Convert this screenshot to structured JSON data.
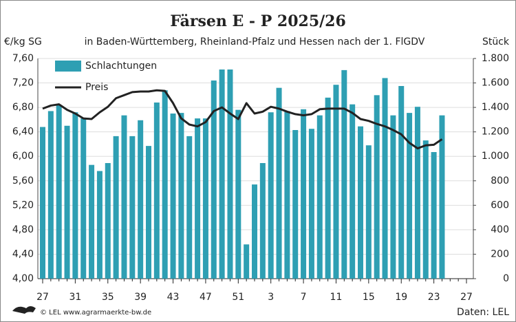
{
  "chart_data": {
    "type": "bar_line",
    "title": "Färsen E - P 2025/26",
    "subtitle": "in Baden-Württemberg, Rheinland-Pfalz und Hessen nach der 1. FlGDV",
    "y_label": "€/kg SG",
    "y2_label": "Stück",
    "footer_left": "© LEL www.agrarmaerkte-bw.de",
    "footer_right": "Daten: LEL",
    "categories": [
      "27",
      null,
      null,
      null,
      "31",
      null,
      null,
      null,
      "35",
      null,
      null,
      null,
      "39",
      null,
      null,
      null,
      "43",
      null,
      null,
      null,
      "47",
      null,
      null,
      null,
      "51",
      null,
      null,
      null,
      "3",
      null,
      null,
      null,
      "7",
      null,
      null,
      null,
      "11",
      null,
      null,
      null,
      "15",
      null,
      null,
      null,
      "19",
      null,
      null,
      null,
      "23",
      null,
      null,
      null,
      "27"
    ],
    "series": [
      {
        "name": "Schlachtungen",
        "color": "#2e9fb3",
        "axis": "y2",
        "kind": "bar",
        "values": [
          1240,
          1370,
          1420,
          1250,
          1360,
          1310,
          930,
          880,
          945,
          1165,
          1335,
          1165,
          1295,
          1085,
          1440,
          1540,
          1350,
          1355,
          1165,
          1310,
          1310,
          1620,
          1710,
          1710,
          1380,
          280,
          770,
          945,
          1360,
          1560,
          1370,
          1215,
          1385,
          1225,
          1335,
          1480,
          1585,
          1705,
          1425,
          1245,
          1090,
          1500,
          1640,
          1335,
          1575,
          1355,
          1405,
          1130,
          1035,
          1335,
          null,
          null,
          null
        ]
      },
      {
        "name": "Preis",
        "color": "#222222",
        "axis": "y",
        "kind": "line",
        "values": [
          6.78,
          6.83,
          6.85,
          6.76,
          6.7,
          6.62,
          6.61,
          6.72,
          6.81,
          6.95,
          7.0,
          7.05,
          7.06,
          7.06,
          7.08,
          7.07,
          6.87,
          6.62,
          6.52,
          6.49,
          6.56,
          6.74,
          6.8,
          6.7,
          6.61,
          6.87,
          6.7,
          6.73,
          6.81,
          6.78,
          6.73,
          6.69,
          6.67,
          6.69,
          6.77,
          6.78,
          6.78,
          6.78,
          6.71,
          6.61,
          6.58,
          6.53,
          6.49,
          6.43,
          6.36,
          6.22,
          6.13,
          6.18,
          6.19,
          6.28,
          null,
          null,
          null
        ]
      }
    ],
    "ylim": [
      4.0,
      7.6
    ],
    "yticks": [
      {
        "value": 4.0,
        "label": "4,00"
      },
      {
        "value": 4.4,
        "label": "4,40"
      },
      {
        "value": 4.8,
        "label": "4,80"
      },
      {
        "value": 5.2,
        "label": "5,20"
      },
      {
        "value": 5.6,
        "label": "5,60"
      },
      {
        "value": 6.0,
        "label": "6,00"
      },
      {
        "value": 6.4,
        "label": "6,40"
      },
      {
        "value": 6.8,
        "label": "6,80"
      },
      {
        "value": 7.2,
        "label": "7,20"
      },
      {
        "value": 7.6,
        "label": "7,60"
      }
    ],
    "y2lim": [
      0,
      1800
    ],
    "y2ticks": [
      0,
      200,
      400,
      600,
      800,
      {
        "value": 1000,
        "label": "1.000"
      },
      {
        "value": 1200,
        "label": "1.200"
      },
      {
        "value": 1400,
        "label": "1.400"
      },
      {
        "value": 1600,
        "label": "1.600"
      },
      {
        "value": 1800,
        "label": "1.800"
      }
    ],
    "grid": true,
    "legend": "top-left"
  }
}
